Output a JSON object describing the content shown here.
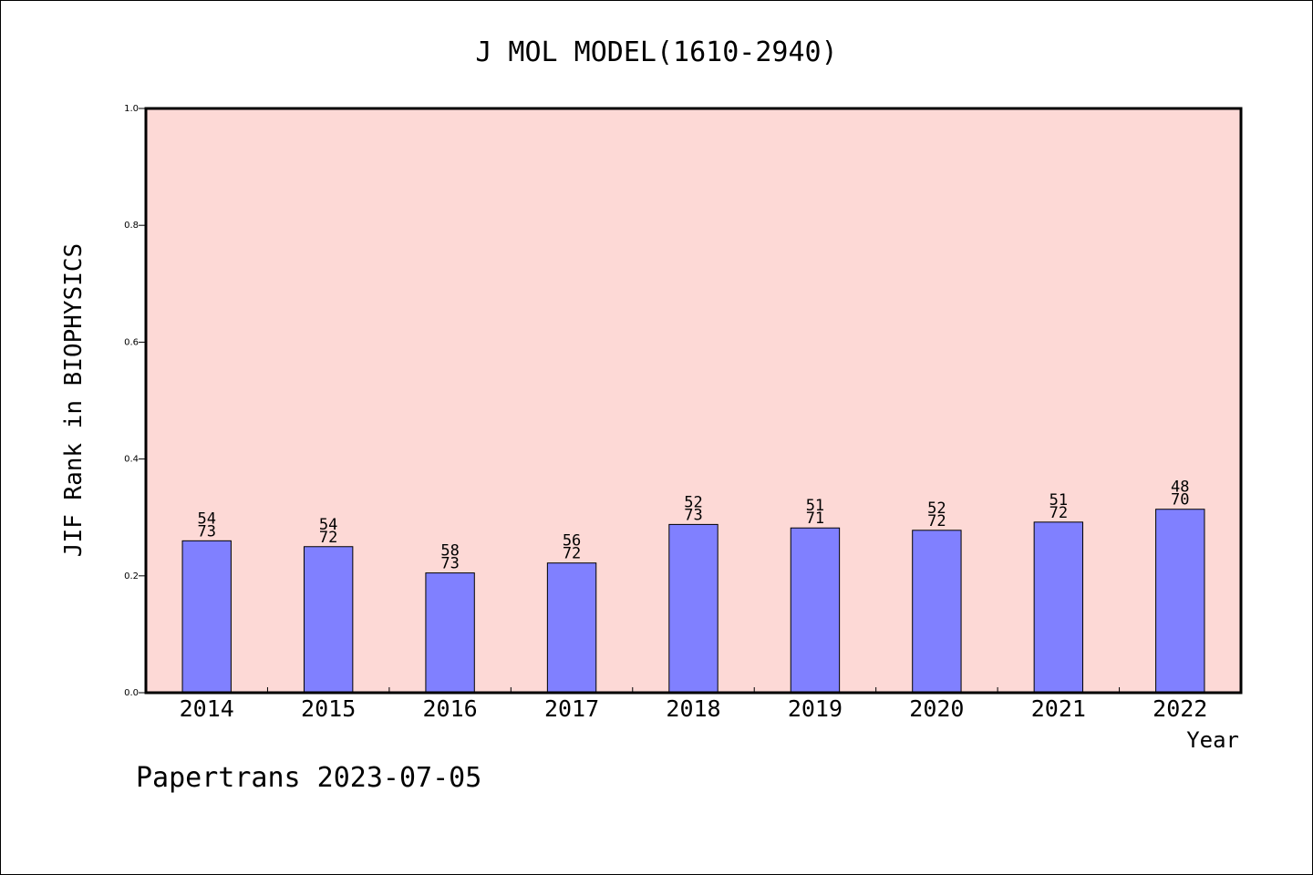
{
  "chart_data": {
    "type": "bar",
    "title": "J MOL MODEL(1610-2940)",
    "xlabel": "Year",
    "ylabel": "JIF Rank in BIOPHYSICS",
    "ylim": [
      0,
      1.0
    ],
    "yticks": [
      "0.0",
      "0.2",
      "0.4",
      "0.6",
      "0.8",
      "1.0"
    ],
    "categories": [
      "2014",
      "2015",
      "2016",
      "2017",
      "2018",
      "2019",
      "2020",
      "2021",
      "2022"
    ],
    "values": [
      0.26,
      0.25,
      0.205,
      0.222,
      0.288,
      0.282,
      0.278,
      0.292,
      0.314
    ],
    "labels": [
      {
        "rank": "54",
        "total": "73"
      },
      {
        "rank": "54",
        "total": "72"
      },
      {
        "rank": "58",
        "total": "73"
      },
      {
        "rank": "56",
        "total": "72"
      },
      {
        "rank": "52",
        "total": "73"
      },
      {
        "rank": "51",
        "total": "71"
      },
      {
        "rank": "52",
        "total": "72"
      },
      {
        "rank": "51",
        "total": "72"
      },
      {
        "rank": "48",
        "total": "70"
      }
    ],
    "grid": false,
    "plot_background": "#fdd9d6",
    "bar_color": "#8080ff"
  },
  "footer": {
    "text": "Papertrans 2023-07-05"
  }
}
